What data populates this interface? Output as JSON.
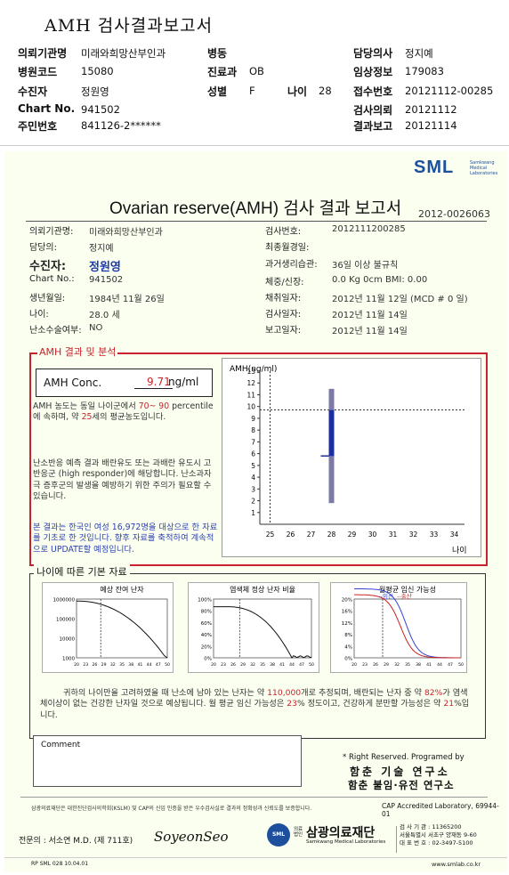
{
  "header": {
    "title": "AMH 검사결과보고서",
    "left": [
      {
        "label": "의뢰기관명",
        "value": "미래와희망산부인과"
      },
      {
        "label": "병원코드",
        "value": "15080"
      },
      {
        "label": "수진자",
        "value": "정원영"
      },
      {
        "label": "Chart No.",
        "value": "941502"
      },
      {
        "label": "주민번호",
        "value": "841126-2******"
      }
    ],
    "mid": [
      {
        "label": "병동",
        "value": ""
      },
      {
        "label": "진료과",
        "value": "OB"
      },
      {
        "label": "성별",
        "value": "F"
      }
    ],
    "age_label": "나이",
    "age_value": "28",
    "right": [
      {
        "label": "담당의사",
        "value": "정지예"
      },
      {
        "label": "임상정보",
        "value": "179083"
      },
      {
        "label": "접수번호",
        "value": "20121112-00285"
      },
      {
        "label": "검사의뢰",
        "value": "20121112"
      },
      {
        "label": "결과보고",
        "value": "20121114"
      }
    ]
  },
  "report": {
    "logo": "SML",
    "logo_sub1": "Samkwang",
    "logo_sub2": "Medical",
    "logo_sub3": "Laboratories",
    "title": "Ovarian reserve(AMH) 검사 결과 보고서",
    "report_no": "2012-0026063",
    "left_fields": [
      {
        "label": "의뢰기관명:",
        "value": "미래와희망산부인과"
      },
      {
        "label": "담당의:",
        "value": "정지예"
      },
      {
        "label": "수진자:",
        "value": "정원영"
      },
      {
        "label": "Chart No.:",
        "value": "941502"
      },
      {
        "label": "생년월일:",
        "value": "1984년 11월 26일"
      },
      {
        "label": "나이:",
        "value": "28.0 세"
      },
      {
        "label": "난소수술여부:",
        "value": "NO"
      }
    ],
    "right_fields": [
      {
        "label": "검사번호:",
        "value": "2012111200285"
      },
      {
        "label": "최종월경일:",
        "value": ""
      },
      {
        "label": "과거생리습관:",
        "value": "36일 이상 불규칙"
      },
      {
        "label": "체중/신장:",
        "value": "0.0 Kg      0cm    BMI:   0.00"
      },
      {
        "label": "채취일자:",
        "value": "2012년 11월 12일  (MCD #  0 일)"
      },
      {
        "label": "검사일자:",
        "value": "2012년 11월 14일"
      },
      {
        "label": "보고일자:",
        "value": "2012년 11월 14일"
      }
    ]
  },
  "amh": {
    "section_title": "AMH 결과 및 분석",
    "conc_label": "AMH Conc.",
    "conc_value": "9.71",
    "conc_unit": "ng/ml",
    "p1_a": "AMH 농도는 동일 나이군에서 ",
    "p1_range": "70~ 90",
    "p1_b": "percentile에 속하며, 약 ",
    "p1_age": "25",
    "p1_c": "세의 평균농도입니다.",
    "p2": "난소반응 예측 결과 배란유도 또는 과배란 유도시 고반응군 (high responder)에 해당합니다. 난소과자극 증후군의 발생을 예방하기 위한 주의가 필요할 수 있습니다.",
    "p3": "본 결과는 한국인 여성 16,972명을 대상으로 한 자료를 기초로 한 것입니다. 향후 자료를 축적하여 계속적으로 UPDATE할 예정입니다.",
    "chart_ylabel": "AMH(ng/ml)",
    "chart_xunit": "나이"
  },
  "chart_data": [
    {
      "type": "bar",
      "ylabel": "AMH(ng/ml)",
      "xlabel": "나이",
      "x": [
        25,
        26,
        27,
        28,
        29,
        30,
        31,
        32,
        33,
        34
      ],
      "ylim": [
        0,
        13
      ],
      "yticks": [
        1,
        2,
        3,
        4,
        5,
        6,
        7,
        8,
        9,
        10,
        11,
        12,
        13
      ],
      "range_bar": {
        "x": 28,
        "low": 1.8,
        "high": 11.5
      },
      "iqr_bar": {
        "x": 28,
        "low": 5.8,
        "high": 9.7
      },
      "patient": {
        "age": 28,
        "value": 9.71
      },
      "ref_age": 25,
      "colors": {
        "range": "#7b7ba6",
        "iqr": "#1b2f9e"
      }
    },
    {
      "type": "line",
      "title": "예상 잔여 난자",
      "x": [
        20,
        23,
        26,
        29,
        32,
        35,
        38,
        41,
        44,
        47,
        50
      ],
      "yticks": [
        "1000000",
        "100000",
        "10000",
        "1000"
      ],
      "marker_age": 28
    },
    {
      "type": "line",
      "title": "염색체 정상 난자 비율",
      "x": [
        20,
        23,
        26,
        29,
        32,
        35,
        38,
        41,
        44,
        47,
        50
      ],
      "yticks": [
        "100%",
        "80%",
        "60%",
        "40%",
        "20%",
        "0%"
      ],
      "marker_age": 28
    },
    {
      "type": "line",
      "title": "월평균 임신 가능성",
      "legend": [
        "임신",
        "출산"
      ],
      "x": [
        20,
        23,
        26,
        29,
        32,
        35,
        38,
        41,
        44,
        47,
        50
      ],
      "yticks": [
        "20%",
        "16%",
        "12%",
        "8%",
        "4%",
        "0%"
      ],
      "marker_age": 28,
      "colors": {
        "pregnancy": "#3344cc",
        "birth": "#cc2222"
      }
    }
  ],
  "age": {
    "section_title": "나이에 따른 기본 자료",
    "summary_a": "귀하의 나이만을 고려하였을 때 난소에 남아 있는 난자는 약 ",
    "eggs": "110,000",
    "summary_b": "개로 추정되며, 배란되는 난자 중 약 ",
    "normal_pct": "82%",
    "summary_c": "가 염색체이상이 없는 건강한 난자일 것으로 예상됩니다. 월 평균 임신 가능성은 ",
    "preg_pct": "23",
    "summary_d": "% 정도이고, 건강하게 분만할 가능성은 약 ",
    "birth_pct": "21",
    "summary_e": "%입니다."
  },
  "comment_label": "Comment",
  "rights": "* Right Reserved. Programed by",
  "institute1": "함춘 기술 연구소",
  "institute2": "함춘 불임·유전 연구소",
  "certify": "삼광의료재단은 대한진단검사의학회(KSLM) 및 CAP의 신임 인증을 받은 우수검사실로 결과의 정확성과 신뢰도를 보증합니다.",
  "cap": "CAP Accredited Laboratory, 69944-01",
  "doctor_label": "전문의 : 서소연 M.D. (제 711호)",
  "signature": "SoyeonSeo",
  "foundation_small": "의료법인",
  "foundation": "삼광의료재단",
  "foundation_en": "Samkwang Medical Laboratories",
  "contact": [
    "검 사 기 관 : 11365200",
    "서울특별시 서초구 양재동 9-60",
    "대 표 번 호 : 02-3497-5100"
  ],
  "form_code": "RP  SML  028  10.04.01",
  "website": "www.smlab.co.kr"
}
